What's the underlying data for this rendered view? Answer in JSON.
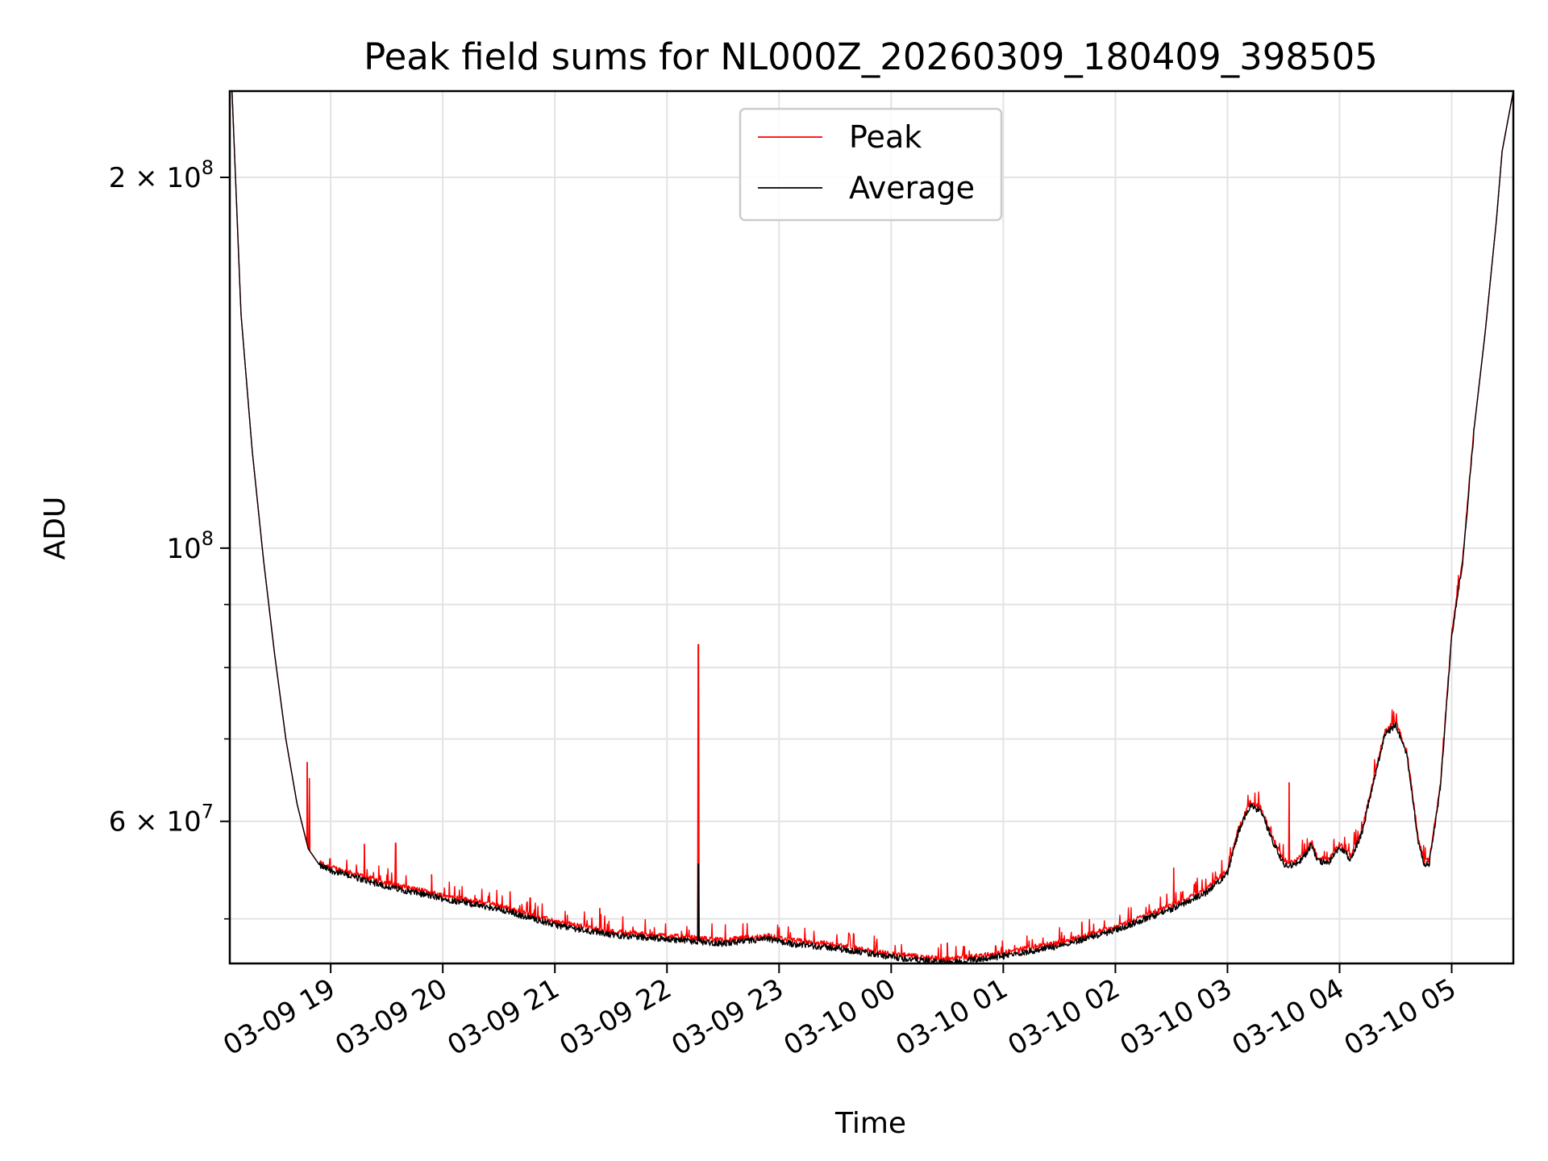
{
  "chart_data": {
    "type": "line",
    "title": "Peak field sums for NL000Z_20260309_180409_398505",
    "xlabel": "Time",
    "ylabel": "ADU",
    "yscale": "log",
    "xlim": [
      18.1,
      29.55
    ],
    "ylim": [
      46000000,
      235000000
    ],
    "x_units": "hours since 2026-03-09 00:00",
    "x_ticks": [
      {
        "value": 19,
        "label": "03-09 19"
      },
      {
        "value": 20,
        "label": "03-09 20"
      },
      {
        "value": 21,
        "label": "03-09 21"
      },
      {
        "value": 22,
        "label": "03-09 22"
      },
      {
        "value": 23,
        "label": "03-09 23"
      },
      {
        "value": 24,
        "label": "03-10 00"
      },
      {
        "value": 25,
        "label": "03-10 01"
      },
      {
        "value": 26,
        "label": "03-10 02"
      },
      {
        "value": 27,
        "label": "03-10 03"
      },
      {
        "value": 28,
        "label": "03-10 04"
      },
      {
        "value": 29,
        "label": "03-10 05"
      }
    ],
    "y_major_ticks": [
      {
        "value": 60000000,
        "base": "6 × 10",
        "exp": "7"
      },
      {
        "value": 100000000,
        "base": "10",
        "exp": "8"
      },
      {
        "value": 200000000,
        "base": "2 × 10",
        "exp": "8"
      }
    ],
    "y_minor_ticks": [
      50000000,
      70000000,
      80000000,
      90000000
    ],
    "legend": {
      "position": "upper-center"
    },
    "grid": true,
    "series": [
      {
        "name": "Peak",
        "color": "#ff0000",
        "spikes": [
          {
            "x": 18.79,
            "y": 67000000
          },
          {
            "x": 18.81,
            "y": 65000000
          },
          {
            "x": 19.3,
            "y": 57500000
          },
          {
            "x": 19.58,
            "y": 57600000
          },
          {
            "x": 19.9,
            "y": 54300000
          },
          {
            "x": 20.6,
            "y": 52600000
          },
          {
            "x": 20.78,
            "y": 52000000
          },
          {
            "x": 21.4,
            "y": 51000000
          },
          {
            "x": 21.85,
            "y": 49000000
          },
          {
            "x": 22.28,
            "y": 83500000
          },
          {
            "x": 23.4,
            "y": 48000000
          },
          {
            "x": 24.5,
            "y": 47800000
          },
          {
            "x": 25.7,
            "y": 49700000
          },
          {
            "x": 26.52,
            "y": 55000000
          },
          {
            "x": 27.55,
            "y": 64500000
          }
        ]
      },
      {
        "name": "Average",
        "color": "#000000",
        "spikes": [
          {
            "x": 22.28,
            "y": 55400000
          }
        ]
      }
    ],
    "baseline": {
      "x": [
        18.12,
        18.2,
        18.3,
        18.4,
        18.5,
        18.6,
        18.7,
        18.8,
        18.9,
        19.0,
        19.5,
        20.0,
        20.5,
        21.0,
        21.5,
        22.0,
        22.5,
        22.9,
        23.1,
        23.5,
        24.0,
        24.5,
        25.0,
        25.5,
        26.0,
        26.5,
        26.8,
        27.0,
        27.1,
        27.2,
        27.3,
        27.4,
        27.5,
        27.6,
        27.7,
        27.75,
        27.8,
        27.9,
        28.0,
        28.1,
        28.2,
        28.3,
        28.4,
        28.5,
        28.6,
        28.65,
        28.7,
        28.75,
        28.8,
        28.9,
        29.0,
        29.1,
        29.2,
        29.3,
        29.4,
        29.45,
        29.55
      ],
      "y": [
        235000000,
        155000000,
        120000000,
        98000000,
        82000000,
        70000000,
        62000000,
        57000000,
        55300000,
        54800000,
        53200000,
        52000000,
        51000000,
        49500000,
        48600000,
        48200000,
        47800000,
        48200000,
        47800000,
        47400000,
        46600000,
        46100000,
        46700000,
        47600000,
        49000000,
        51000000,
        52500000,
        54500000,
        59000000,
        61800000,
        61200000,
        58000000,
        55500000,
        55300000,
        56500000,
        57500000,
        55800000,
        55500000,
        57200000,
        56000000,
        58800000,
        64500000,
        70500000,
        72000000,
        68000000,
        63000000,
        58000000,
        55500000,
        55500000,
        64000000,
        85000000,
        98000000,
        125000000,
        150000000,
        185000000,
        210000000,
        235000000
      ]
    }
  }
}
